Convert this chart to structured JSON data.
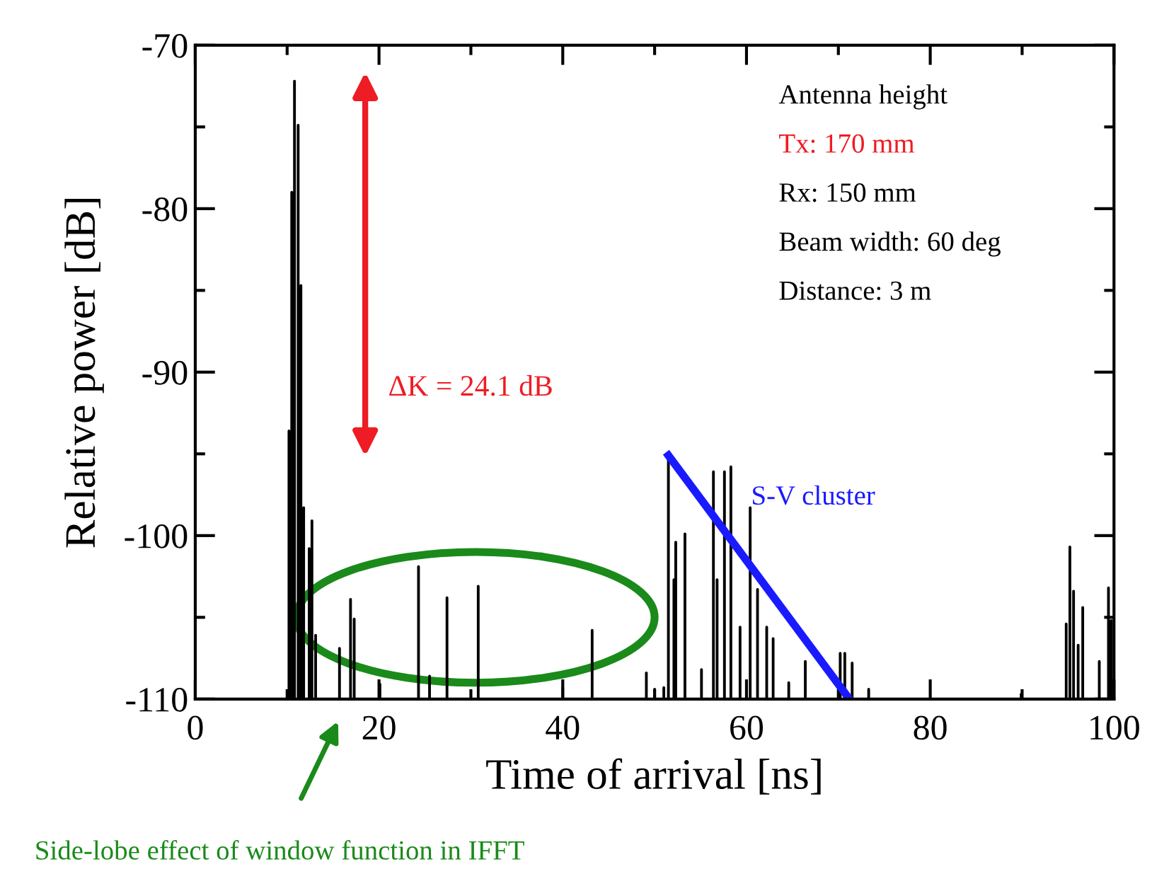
{
  "chart_data": {
    "type": "line",
    "xlabel": "Time of arrival [ns]",
    "ylabel": "Relative power [dB]",
    "xlim": [
      0,
      100
    ],
    "ylim": [
      -110,
      -70
    ],
    "xticks": [
      0,
      20,
      40,
      60,
      80,
      100,
      {
        "value": 10,
        "label": null
      },
      {
        "value": 30,
        "label": null
      },
      {
        "value": 50,
        "label": null
      },
      {
        "value": 70,
        "label": null
      },
      {
        "value": 90,
        "label": null
      }
    ],
    "yticks": [
      -110,
      -100,
      -90,
      -80,
      -70,
      {
        "value": -105,
        "label": null
      },
      {
        "value": -95,
        "label": null
      },
      {
        "value": -85,
        "label": null
      },
      {
        "value": -75,
        "label": null
      }
    ],
    "grid": false,
    "legend": false,
    "marker": "none",
    "line_style": "solid",
    "series": [
      {
        "color": "#000000",
        "x": [
          10.2,
          10.2,
          10.2,
          10.5,
          10.5,
          10.5,
          10.8,
          10.8,
          10.8,
          11.2,
          11.2,
          11.2,
          11.5,
          11.5,
          11.5,
          11.8,
          11.8,
          11.8,
          12.4,
          12.4,
          12.4,
          12.7,
          12.7,
          12.7,
          13.1,
          13.1,
          13.1,
          15.7,
          15.7,
          15.7,
          16.9,
          16.9,
          16.9,
          17.3,
          17.3,
          17.3,
          20.1,
          20.1,
          20.1,
          24.3,
          24.3,
          24.3,
          25.5,
          25.5,
          25.5,
          27.4,
          27.4,
          27.4,
          30.8,
          30.8,
          30.8,
          40.0,
          40.0,
          40.0,
          43.2,
          43.2,
          43.2,
          49.1,
          49.1,
          49.1,
          50.0,
          50.0,
          50.0,
          51.0,
          51.0,
          51.0,
          51.5,
          51.5,
          51.5,
          52.1,
          52.1,
          52.1,
          52.3,
          52.3,
          52.3,
          53.3,
          53.3,
          53.3,
          55.1,
          55.1,
          55.1,
          56.4,
          56.4,
          56.4,
          56.8,
          56.8,
          56.8,
          57.6,
          57.6,
          57.6,
          58.3,
          58.3,
          58.3,
          59.3,
          59.3,
          59.3,
          60.4,
          60.4,
          60.4,
          61.2,
          61.2,
          61.2,
          62.2,
          62.2,
          62.2,
          62.9,
          62.9,
          62.9,
          64.6,
          64.6,
          64.6,
          66.4,
          66.4,
          66.4,
          70.2,
          70.2,
          70.2,
          70.7,
          70.7,
          70.7,
          71.5,
          71.5,
          71.5,
          73.3,
          73.3,
          73.3,
          89.9,
          89.9,
          89.9,
          94.8,
          94.8,
          94.8,
          95.2,
          95.2,
          95.2,
          95.6,
          95.6,
          95.6,
          96.1,
          96.1,
          96.1,
          96.6,
          96.6,
          96.6,
          98.4,
          98.4,
          98.4,
          99.4,
          99.4,
          99.4,
          99.7,
          99.7,
          99.7
        ],
        "values": [
          -110,
          -93.6,
          -110,
          -110,
          -79,
          -110,
          -110,
          -72.2,
          -110,
          -110,
          -74.9,
          -110,
          -110,
          -84.7,
          -110,
          -110,
          -98.3,
          -110,
          -110,
          -100.8,
          -110,
          -110,
          -99.1,
          -110,
          -110,
          -106.1,
          -110,
          -110,
          -106.9,
          -110,
          -110,
          -103.9,
          -110,
          -110,
          -105.1,
          -110,
          -110,
          -109.1,
          -110,
          -110,
          -101.9,
          -110,
          -110,
          -108.6,
          -110,
          -110,
          -103.8,
          -110,
          -110,
          -103.1,
          -110,
          -110,
          -109.3,
          -110,
          -110,
          -105.8,
          -110,
          -110,
          -108.4,
          -110,
          -110,
          -109.4,
          -110,
          -110,
          -109.3,
          -110,
          -110,
          -95.1,
          -110,
          -110,
          -102.7,
          -110,
          -110,
          -100.4,
          -110,
          -110,
          -99.9,
          -110,
          -110,
          -108.2,
          -110,
          -110,
          -96.1,
          -110,
          -110,
          -102.7,
          -110,
          -110,
          -96.1,
          -110,
          -110,
          -95.8,
          -110,
          -110,
          -105.6,
          -110,
          -110,
          -98.3,
          -110,
          -110,
          -103.3,
          -110,
          -110,
          -105.6,
          -110,
          -110,
          -106.3,
          -110,
          -110,
          -109,
          -110,
          -110,
          -107.7,
          -110,
          -110,
          -107.2,
          -110,
          -110,
          -107.2,
          -110,
          -110,
          -107.8,
          -110,
          -110,
          -109.4,
          -110,
          -110,
          -109.7,
          -110,
          -110,
          -105.4,
          -110,
          -110,
          -100.7,
          -110,
          -110,
          -103.4,
          -110,
          -110,
          -106.7,
          -110,
          -110,
          -104.4,
          -110,
          -110,
          -107.7,
          -110,
          -110,
          -103.2,
          -110,
          -110,
          -105.2,
          -110
        ]
      },
      {
        "name": "S-V cluster",
        "color": "#1a1aff",
        "x": [
          51.5,
          71.2
        ],
        "values": [
          -95.1,
          -110
        ]
      }
    ],
    "annotations": [
      "ΔK = 24.1 dB",
      "Antenna height",
      "Tx: 170 mm",
      "Rx: 150 mm",
      "Beam width: 60 deg",
      "Distance: 3 m",
      "Side-lobe effect of window function in IFFT"
    ]
  }
}
